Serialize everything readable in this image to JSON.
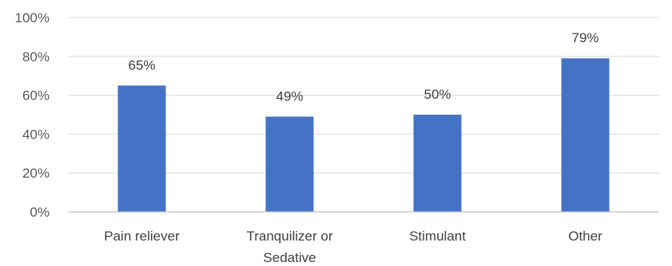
{
  "chart_data": {
    "type": "bar",
    "categories": [
      "Pain reliever",
      "Tranquilizer or Sedative",
      "Stimulant",
      "Other"
    ],
    "category_lines": [
      [
        "Pain reliever"
      ],
      [
        "Tranquilizer or",
        "Sedative"
      ],
      [
        "Stimulant"
      ],
      [
        "Other"
      ]
    ],
    "values": [
      65,
      49,
      50,
      79
    ],
    "data_labels": [
      "65%",
      "49%",
      "50%",
      "79%"
    ],
    "ylim": [
      0,
      100
    ],
    "yticks": [
      0,
      20,
      40,
      60,
      80,
      100
    ],
    "ytick_labels": [
      "0%",
      "20%",
      "40%",
      "60%",
      "80%",
      "100%"
    ],
    "grid": true,
    "legend": "none",
    "bar_color": "#4472C4"
  }
}
